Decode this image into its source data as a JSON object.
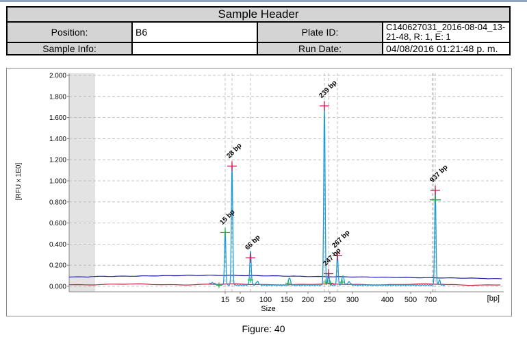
{
  "header": {
    "title": "Sample Header",
    "position_label": "Position:",
    "position_value": "B6",
    "plate_label": "Plate ID:",
    "plate_value": "C140627031_2016-08-04_13-21-48, R: 1, E: 1",
    "sample_info_label": "Sample Info:",
    "sample_info_value": "",
    "run_date_label": "Run Date:",
    "run_date_value": "04/08/2016 01:21:48 p. m."
  },
  "caption": "Figure: 40",
  "chart_data": {
    "type": "line",
    "xlabel": "Size",
    "x_unit": "[bp]",
    "ylabel": "[RFU x 1E0]",
    "ylim": [
      0.0,
      2.0
    ],
    "yticks": [
      "0.000",
      "0.200",
      "0.400",
      "0.600",
      "0.800",
      "1.000",
      "1.200",
      "1.400",
      "1.600",
      "1.800",
      "2.000"
    ],
    "x_tick_labels": [
      "15",
      "50",
      "100",
      "150",
      "200",
      "250",
      "300",
      "400",
      "500",
      "700"
    ],
    "x_tick_sizes": [
      15,
      50,
      100,
      150,
      200,
      250,
      300,
      400,
      500,
      700
    ],
    "size_marker_bp": [
      15,
      28,
      66,
      239,
      247,
      267,
      937
    ],
    "peaks": [
      {
        "label": "15 bp",
        "size": 15,
        "rfu": 0.51
      },
      {
        "label": "28 bp",
        "size": 28,
        "rfu": 1.14
      },
      {
        "label": "66 bp",
        "size": 66,
        "rfu": 0.27
      },
      {
        "label": "239 bp",
        "size": 239,
        "rfu": 1.71
      },
      {
        "label": "247 bp",
        "size": 247,
        "rfu": 0.12
      },
      {
        "label": "267 bp",
        "size": 267,
        "rfu": 0.29
      },
      {
        "label": "937 bp",
        "size": 937,
        "rfu": 0.91
      }
    ],
    "series": [
      {
        "color": "#1a9bd7",
        "role": "electropherogram signal"
      },
      {
        "color": "#1c1ca8",
        "role": "baseline"
      },
      {
        "color": "#c0283c",
        "role": "marker baseline"
      }
    ],
    "grid": true,
    "colors": {
      "peak_marker": "#d01a45",
      "edge_marker": "#22b04a",
      "lower_marker_band": "#e5e5e5"
    }
  }
}
